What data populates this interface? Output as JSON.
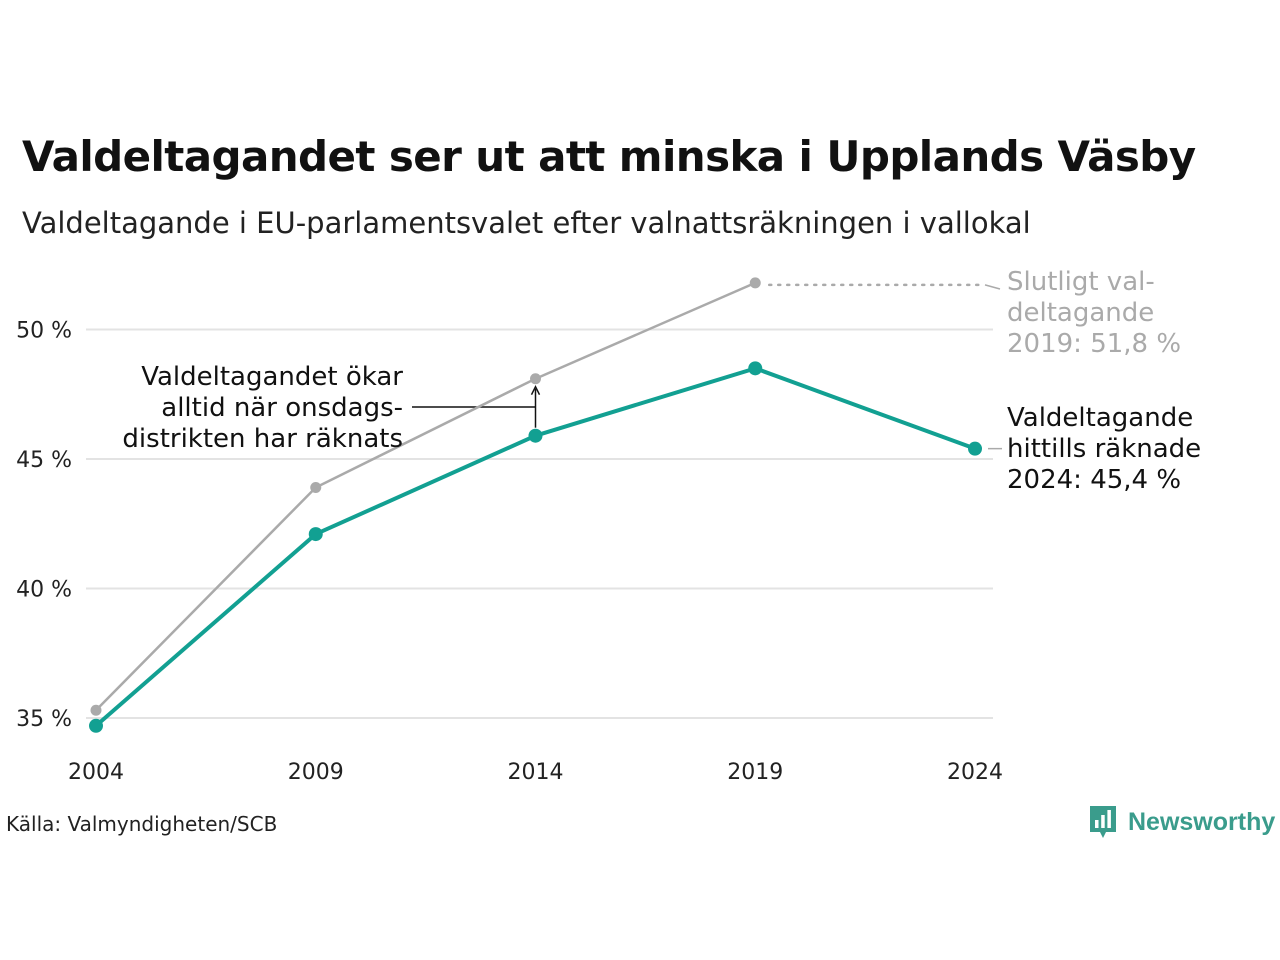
{
  "title": "Valdeltagandet ser ut att minska i Upplands Väsby",
  "subtitle": "Valdeltagande i EU-parlamentsvalet efter valnattsräkningen i vallokal",
  "source": "Källa: Valmyndigheten/SCB",
  "brand": {
    "name": "Newsworthy",
    "icon": "newsworthy-logo-icon",
    "color": "#3a9c8c"
  },
  "chart_data": {
    "type": "line",
    "x": [
      "2004",
      "2009",
      "2014",
      "2019",
      "2024"
    ],
    "y_ticks": [
      "35 %",
      "40 %",
      "45 %",
      "50 %"
    ],
    "y_tick_values": [
      35,
      40,
      45,
      50
    ],
    "ylim": [
      34.5,
      52.5
    ],
    "grid": true,
    "series": [
      {
        "key": "final",
        "color": "#aaaaaa",
        "values": [
          35.3,
          43.9,
          48.1,
          51.8,
          null
        ]
      },
      {
        "key": "counted",
        "color": "#12a092",
        "values": [
          34.7,
          42.1,
          45.9,
          48.5,
          45.4
        ]
      }
    ],
    "annotations": {
      "final": [
        "Slutligt val-",
        "deltagande",
        "2019: 51,8 %"
      ],
      "counted": [
        "Valdeltagande",
        "hittills räknade",
        "2024: 45,4 %"
      ],
      "wednesday": [
        "Valdeltagandet ökar",
        "alltid när onsdags-",
        "distrikten har räknats"
      ]
    }
  }
}
